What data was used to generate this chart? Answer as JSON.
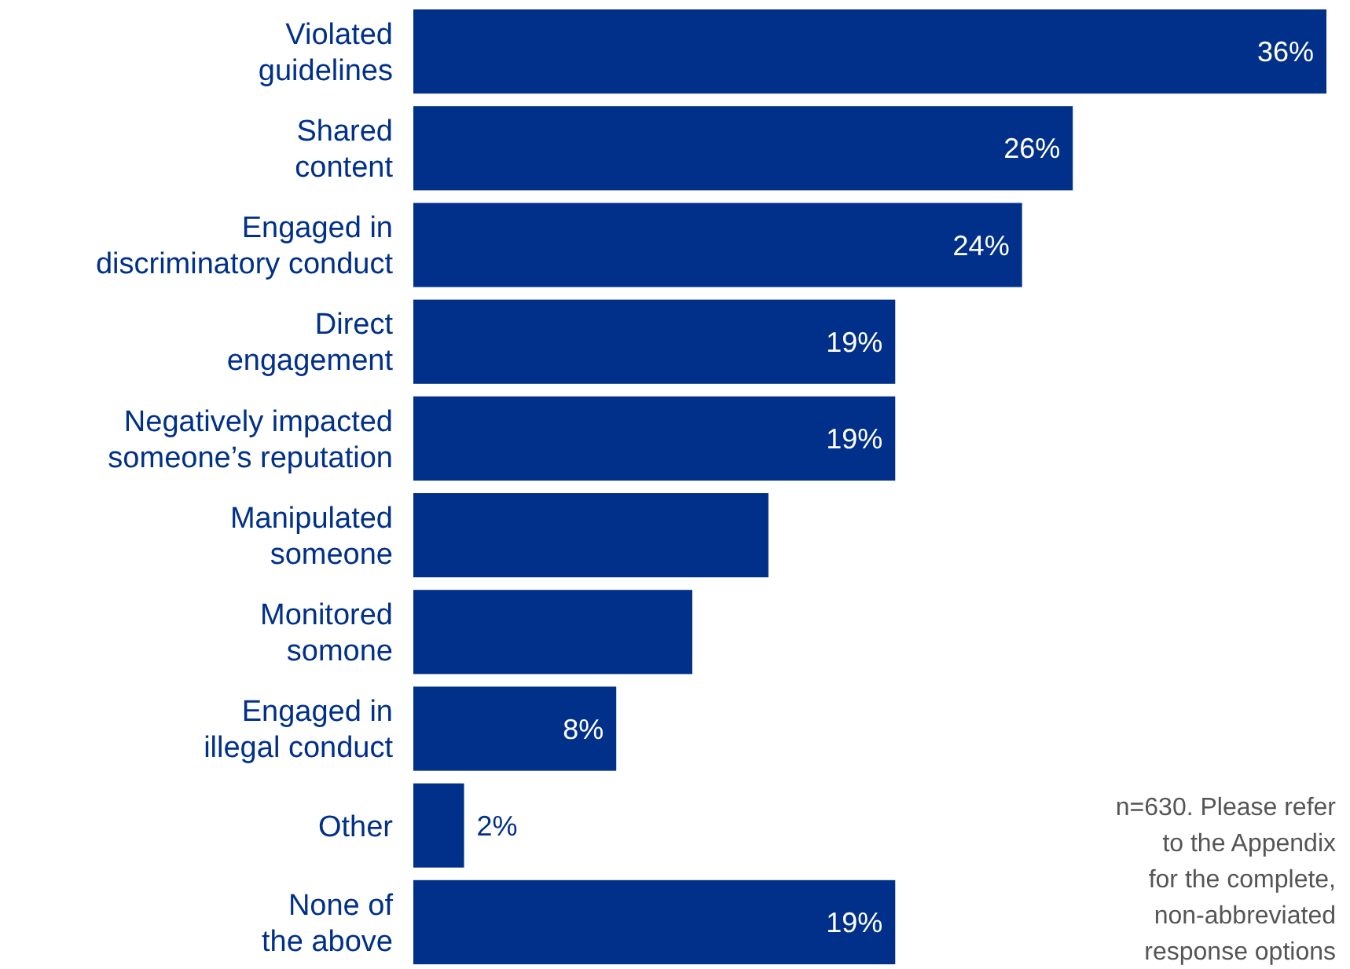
{
  "chart_data": {
    "type": "bar",
    "orientation": "horizontal",
    "categories": [
      "Violated guidelines",
      "Shared content",
      "Engaged in discriminatory conduct",
      "Direct engagement",
      "Negatively impacted someone’s reputation",
      "Manipulated someone",
      "Monitored somone",
      "Engaged in illegal conduct",
      "Other",
      "None of the above"
    ],
    "values": [
      36,
      26,
      24,
      19,
      19,
      14,
      11,
      8,
      2,
      19
    ],
    "value_labels": [
      "36%",
      "26%",
      "24%",
      "19%",
      "19%",
      null,
      null,
      "8%",
      "2%",
      "19%"
    ],
    "color": "#00308a",
    "annotations": [
      "n=630. Please refer\nto the Appendix\nfor the complete,\nnon-abbreviated\nresponse options"
    ]
  }
}
